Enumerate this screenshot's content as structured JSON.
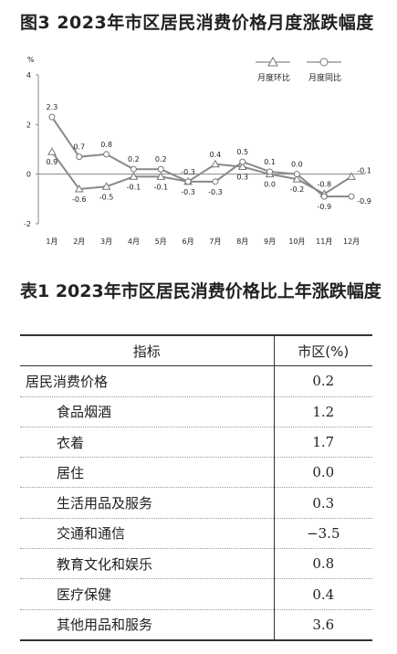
{
  "figure_title": "图3  2023年市区居民消费价格月度涨跌幅度",
  "chart_data": {
    "type": "line",
    "ylabel": "%",
    "ylim": [
      -2,
      4
    ],
    "yticks": [
      "4",
      "2",
      "0",
      "-2"
    ],
    "categories": [
      "1月",
      "2月",
      "3月",
      "4月",
      "5月",
      "6月",
      "7月",
      "8月",
      "9月",
      "10月",
      "11月",
      "12月"
    ],
    "series": [
      {
        "name": "月度环比",
        "marker": "triangle",
        "values": [
          0.9,
          -0.6,
          -0.5,
          -0.1,
          -0.1,
          -0.3,
          0.4,
          0.3,
          0.0,
          -0.2,
          -0.8,
          -0.1
        ],
        "labels": [
          "0.9",
          "-0.6",
          "-0.5",
          "-0.1",
          "-0.1",
          "-0.3",
          "0.4",
          "0.3",
          "0.0",
          "-0.2",
          "-0.8",
          "-0.1"
        ]
      },
      {
        "name": "月度同比",
        "marker": "circle",
        "values": [
          2.3,
          0.7,
          0.8,
          0.2,
          0.2,
          -0.3,
          -0.3,
          0.5,
          0.1,
          0.0,
          -0.9,
          -0.9
        ],
        "labels": [
          "2.3",
          "0.7",
          "0.8",
          "0.2",
          "0.2",
          "-0.3",
          "-0.3",
          "0.5",
          "0.1",
          "0.0",
          "-0.9",
          "-0.9"
        ]
      }
    ],
    "line_color": "#888888",
    "grid": false,
    "legend": "top-right"
  },
  "table": {
    "title": "表1  2023年市区居民消费价格比上年涨跌幅度",
    "headers": [
      "指标",
      "市区(%)"
    ],
    "rows": [
      {
        "name": "居民消费价格",
        "value": "0.2",
        "indent": false
      },
      {
        "name": "食品烟酒",
        "value": "1.2",
        "indent": true
      },
      {
        "name": "衣着",
        "value": "1.7",
        "indent": true
      },
      {
        "name": "居住",
        "value": "0.0",
        "indent": true
      },
      {
        "name": "生活用品及服务",
        "value": "0.3",
        "indent": true
      },
      {
        "name": "交通和通信",
        "value": "−3.5",
        "indent": true
      },
      {
        "name": "教育文化和娱乐",
        "value": "0.8",
        "indent": true
      },
      {
        "name": "医疗保健",
        "value": "0.4",
        "indent": true
      },
      {
        "name": "其他用品和服务",
        "value": "3.6",
        "indent": true
      }
    ]
  }
}
